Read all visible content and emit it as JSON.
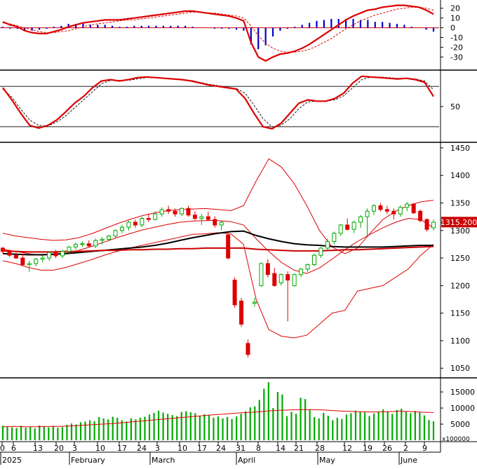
{
  "chart_data": [
    {
      "type": "line",
      "panel": "MACD",
      "yticks": [
        20,
        10,
        0,
        -10,
        -20,
        -30
      ],
      "ylim": [
        -42,
        27
      ],
      "series": [
        {
          "role": "macd",
          "color": "#dd0000",
          "values": [
            6,
            3,
            1,
            -3,
            -5,
            -6,
            -6,
            -4,
            -2,
            1,
            3,
            5,
            6,
            7,
            8,
            8,
            8,
            9,
            10,
            11,
            12,
            13,
            14,
            15,
            16,
            17,
            17,
            16,
            15,
            14,
            13,
            12,
            10,
            7,
            -15,
            -30,
            -34,
            -30,
            -27,
            -26,
            -24,
            -21,
            -17,
            -12,
            -7,
            -2,
            3,
            8,
            12,
            15,
            18,
            19,
            21,
            22,
            23,
            23,
            22,
            21,
            18,
            14
          ]
        },
        {
          "role": "signal",
          "color": "#dd0000",
          "dash": true,
          "values": [
            5,
            4,
            2,
            0,
            -2,
            -4,
            -5,
            -5,
            -4,
            -3,
            -1,
            1,
            3,
            4,
            5,
            6,
            7,
            8,
            8,
            9,
            10,
            11,
            12,
            13,
            14,
            15,
            16,
            16,
            15,
            15,
            14,
            13,
            12,
            10,
            2,
            -8,
            -16,
            -21,
            -24,
            -25,
            -25,
            -24,
            -22,
            -19,
            -15,
            -11,
            -6,
            -1,
            3,
            7,
            10,
            13,
            15,
            17,
            19,
            20,
            21,
            21,
            20,
            18
          ]
        },
        {
          "role": "histogram",
          "color": "#0000cc",
          "values": [
            1,
            -1,
            -1,
            -3,
            -3,
            -2,
            -1,
            1,
            2,
            4,
            4,
            4,
            3,
            3,
            3,
            2,
            1,
            1,
            2,
            2,
            2,
            2,
            2,
            2,
            2,
            2,
            1,
            0,
            0,
            -1,
            -1,
            -1,
            -2,
            -3,
            -17,
            -22,
            -18,
            -9,
            -3,
            -1,
            1,
            3,
            5,
            7,
            8,
            9,
            9,
            9,
            9,
            8,
            8,
            6,
            6,
            5,
            4,
            3,
            1,
            0,
            -2,
            -4
          ]
        }
      ]
    },
    {
      "type": "line",
      "panel": "Stochastic",
      "yticks": [
        50
      ],
      "levels": [
        80,
        20
      ],
      "ylim": [
        0,
        100
      ],
      "series": [
        {
          "role": "k",
          "color": "#dd0000",
          "values": [
            78,
            60,
            40,
            22,
            18,
            22,
            30,
            42,
            55,
            65,
            78,
            88,
            90,
            88,
            90,
            93,
            94,
            93,
            92,
            91,
            90,
            88,
            85,
            82,
            80,
            78,
            76,
            62,
            40,
            20,
            17,
            25,
            40,
            55,
            60,
            58,
            58,
            62,
            70,
            85,
            95,
            94,
            93,
            92,
            91,
            92,
            90,
            86,
            65
          ]
        },
        {
          "role": "d",
          "color": "#000000",
          "dash": true,
          "values": [
            76,
            64,
            46,
            30,
            22,
            21,
            27,
            36,
            48,
            60,
            72,
            84,
            89,
            89,
            89,
            91,
            93,
            93,
            92,
            91,
            90,
            89,
            86,
            83,
            81,
            79,
            77,
            70,
            52,
            32,
            20,
            22,
            32,
            47,
            57,
            58,
            58,
            60,
            66,
            78,
            90,
            94,
            94,
            93,
            92,
            92,
            91,
            88,
            75
          ]
        }
      ]
    },
    {
      "type": "candlestick",
      "panel": "Price",
      "yticks": [
        1450,
        1400,
        1350,
        1300,
        1250,
        1200,
        1150,
        1100,
        1050
      ],
      "ylim": [
        1035,
        1455
      ],
      "last_price": "1315.200",
      "ohlc": [
        [
          1268,
          1270,
          1258,
          1262
        ],
        [
          1262,
          1265,
          1252,
          1255
        ],
        [
          1255,
          1260,
          1248,
          1250
        ],
        [
          1250,
          1258,
          1235,
          1238
        ],
        [
          1238,
          1245,
          1225,
          1240
        ],
        [
          1240,
          1250,
          1235,
          1248
        ],
        [
          1248,
          1255,
          1242,
          1250
        ],
        [
          1250,
          1262,
          1245,
          1260
        ],
        [
          1260,
          1265,
          1250,
          1254
        ],
        [
          1254,
          1265,
          1250,
          1262
        ],
        [
          1262,
          1272,
          1258,
          1270
        ],
        [
          1270,
          1278,
          1265,
          1275
        ],
        [
          1275,
          1280,
          1270,
          1276
        ],
        [
          1276,
          1282,
          1270,
          1272
        ],
        [
          1272,
          1285,
          1268,
          1282
        ],
        [
          1282,
          1288,
          1275,
          1284
        ],
        [
          1284,
          1292,
          1280,
          1290
        ],
        [
          1290,
          1302,
          1286,
          1300
        ],
        [
          1300,
          1310,
          1295,
          1306
        ],
        [
          1306,
          1318,
          1300,
          1315
        ],
        [
          1315,
          1320,
          1305,
          1310
        ],
        [
          1310,
          1325,
          1306,
          1322
        ],
        [
          1322,
          1330,
          1315,
          1320
        ],
        [
          1320,
          1335,
          1318,
          1330
        ],
        [
          1330,
          1342,
          1325,
          1338
        ],
        [
          1338,
          1345,
          1330,
          1335
        ],
        [
          1335,
          1340,
          1325,
          1330
        ],
        [
          1330,
          1342,
          1326,
          1340
        ],
        [
          1340,
          1345,
          1325,
          1328
        ],
        [
          1328,
          1335,
          1318,
          1322
        ],
        [
          1322,
          1330,
          1310,
          1325
        ],
        [
          1325,
          1334,
          1318,
          1320
        ],
        [
          1320,
          1326,
          1305,
          1310
        ],
        [
          1310,
          1318,
          1300,
          1315
        ],
        [
          1292,
          1294,
          1248,
          1250
        ],
        [
          1210,
          1215,
          1160,
          1165
        ],
        [
          1172,
          1178,
          1125,
          1130
        ],
        [
          1095,
          1102,
          1070,
          1075
        ],
        [
          1168,
          1178,
          1162,
          1170
        ],
        [
          1200,
          1242,
          1198,
          1240
        ],
        [
          1240,
          1248,
          1215,
          1220
        ],
        [
          1222,
          1232,
          1198,
          1200
        ],
        [
          1205,
          1222,
          1200,
          1220
        ],
        [
          1220,
          1226,
          1135,
          1210
        ],
        [
          1200,
          1222,
          1198,
          1220
        ],
        [
          1220,
          1232,
          1215,
          1230
        ],
        [
          1230,
          1240,
          1225,
          1238
        ],
        [
          1238,
          1258,
          1235,
          1255
        ],
        [
          1255,
          1270,
          1250,
          1268
        ],
        [
          1268,
          1285,
          1262,
          1280
        ],
        [
          1280,
          1298,
          1275,
          1295
        ],
        [
          1295,
          1312,
          1290,
          1310
        ],
        [
          1310,
          1322,
          1300,
          1302
        ],
        [
          1302,
          1318,
          1295,
          1315
        ],
        [
          1315,
          1328,
          1305,
          1325
        ],
        [
          1325,
          1340,
          1288,
          1335
        ],
        [
          1335,
          1348,
          1328,
          1345
        ],
        [
          1345,
          1350,
          1335,
          1338
        ],
        [
          1338,
          1345,
          1330,
          1335
        ],
        [
          1335,
          1340,
          1320,
          1330
        ],
        [
          1330,
          1345,
          1325,
          1342
        ],
        [
          1342,
          1352,
          1335,
          1348
        ],
        [
          1348,
          1350,
          1330,
          1332
        ],
        [
          1335,
          1338,
          1315,
          1318
        ],
        [
          1320,
          1322,
          1298,
          1302
        ],
        [
          1305,
          1320,
          1300,
          1315
        ]
      ],
      "overlays": [
        {
          "role": "bollinger-upper",
          "color": "#dd0000",
          "values": [
            1295,
            1290,
            1287,
            1284,
            1282,
            1283,
            1287,
            1294,
            1303,
            1312,
            1320,
            1327,
            1332,
            1336,
            1338,
            1339,
            1340,
            1338,
            1336,
            1345,
            1390,
            1430,
            1415,
            1385,
            1345,
            1300,
            1270,
            1258,
            1268,
            1295,
            1320,
            1335,
            1345,
            1352,
            1355
          ]
        },
        {
          "role": "bollinger-middle",
          "color": "#dd0000",
          "values": [
            1266,
            1262,
            1258,
            1255,
            1256,
            1259,
            1264,
            1271,
            1279,
            1287,
            1294,
            1301,
            1306,
            1311,
            1315,
            1317,
            1318,
            1318,
            1316,
            1310,
            1285,
            1262,
            1242,
            1228,
            1222,
            1232,
            1248,
            1265,
            1280,
            1293,
            1305,
            1315,
            1322,
            1320,
            1305
          ]
        },
        {
          "role": "bollinger-lower",
          "color": "#dd0000",
          "values": [
            1245,
            1240,
            1233,
            1228,
            1228,
            1233,
            1240,
            1247,
            1255,
            1262,
            1268,
            1273,
            1278,
            1283,
            1288,
            1293,
            1294,
            1296,
            1294,
            1275,
            1175,
            1120,
            1108,
            1105,
            1110,
            1130,
            1150,
            1155,
            1190,
            1195,
            1200,
            1215,
            1230,
            1255,
            1275
          ]
        },
        {
          "role": "ma-long",
          "color": "#000000",
          "values": [
            1258,
            1257,
            1256,
            1256,
            1257,
            1258,
            1260,
            1262,
            1264,
            1266,
            1268,
            1270,
            1273,
            1277,
            1282,
            1287,
            1291,
            1295,
            1298,
            1299,
            1291,
            1285,
            1280,
            1276,
            1274,
            1273,
            1271,
            1270,
            1270,
            1270,
            1270,
            1271,
            1272,
            1273,
            1273
          ]
        },
        {
          "role": "ma-longer",
          "color": "#cc0000",
          "values": [
            1263,
            1262,
            1261,
            1261,
            1261,
            1262,
            1262,
            1263,
            1264,
            1264,
            1265,
            1265,
            1266,
            1266,
            1267,
            1267,
            1268,
            1268,
            1268,
            1268,
            1266,
            1265,
            1264,
            1263,
            1263,
            1263,
            1264,
            1265,
            1265,
            1266,
            1267,
            1268,
            1269,
            1270,
            1271
          ]
        }
      ]
    },
    {
      "type": "bar",
      "panel": "Volume",
      "yticks": [
        15000,
        10000,
        5000
      ],
      "unit_label": "x100000",
      "ylim": [
        0,
        18500
      ],
      "values": [
        4500,
        4200,
        4000,
        3800,
        4500,
        3900,
        4100,
        3700,
        4600,
        4300,
        4000,
        4500,
        3900,
        4100,
        4800,
        5200,
        4900,
        5600,
        5800,
        6200,
        5900,
        7200,
        6800,
        6500,
        7300,
        7000,
        6200,
        5800,
        6800,
        6500,
        7000,
        7300,
        8000,
        8500,
        9200,
        8600,
        8200,
        7800,
        7500,
        8800,
        9000,
        8700,
        8400,
        7600,
        8100,
        7800,
        7000,
        7400,
        6800,
        7200,
        6600,
        7400,
        8200,
        9000,
        10200,
        10500,
        12500,
        16000,
        18000,
        10000,
        15000,
        14200,
        7500,
        8800,
        8200,
        13200,
        12800,
        9500,
        7200,
        6800,
        8500,
        7600,
        6200,
        7000,
        6600,
        8000,
        8400,
        9200,
        8800,
        8600,
        7500,
        8300,
        8700,
        9600,
        9000,
        8200,
        9400,
        9800,
        8900,
        8400,
        9100,
        8800,
        7700,
        6300,
        5900
      ],
      "ma": [
        4200,
        4300,
        4200,
        4200,
        4300,
        4300,
        4400,
        4600,
        4800,
        5000,
        5200,
        5500,
        5800,
        6100,
        6400,
        6700,
        7000,
        7300,
        7600,
        7900,
        8100,
        8400,
        8600,
        8800,
        9100,
        9300,
        9400,
        9500,
        9500,
        9400,
        9200,
        9000,
        8900,
        8800,
        8800,
        8900,
        9000,
        8900,
        8700,
        8600
      ]
    }
  ],
  "xaxis": {
    "day_ticks": [
      "0",
      "6",
      "13",
      "20",
      "3",
      "10",
      "17",
      "24",
      "3",
      "10",
      "17",
      "24",
      "31",
      "8",
      "14",
      "21",
      "28",
      "12",
      "19",
      "26",
      "2",
      "9"
    ],
    "month_labels": [
      "2025",
      "February",
      "March",
      "April",
      "May",
      "June"
    ]
  }
}
